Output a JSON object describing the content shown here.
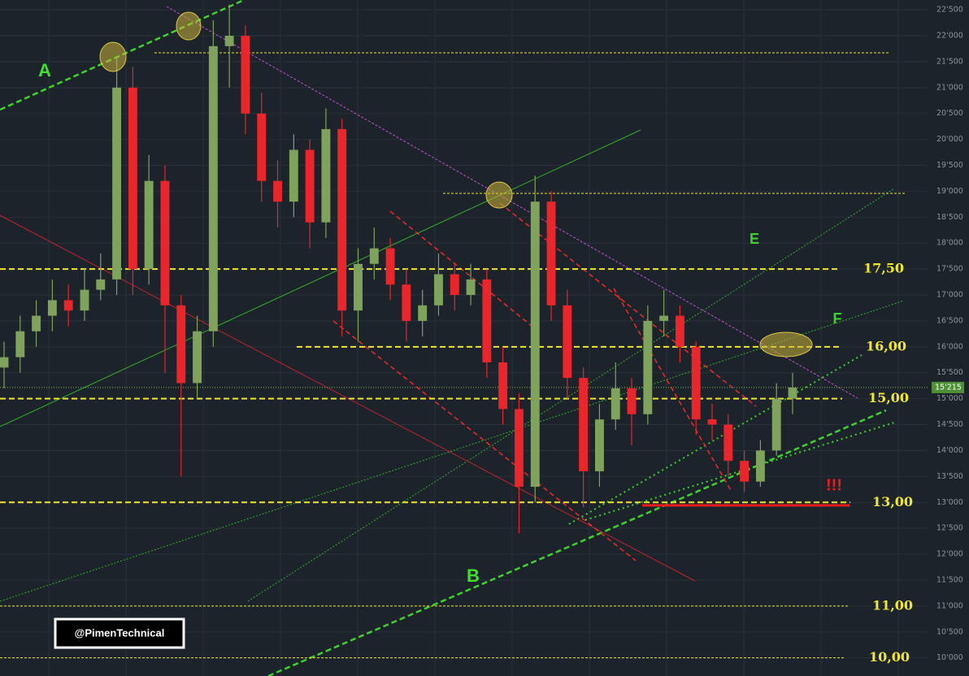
{
  "chart_data": {
    "type": "candlestick",
    "open": [
      15600,
      15800,
      16300,
      16600,
      16900,
      16700,
      17100,
      17300,
      21000,
      17500,
      19200,
      16800,
      15300,
      16300,
      21800,
      22000,
      20500,
      19200,
      18800,
      19800,
      18400,
      20200,
      16700,
      17600,
      17900,
      17200,
      16500,
      16800,
      17400,
      17000,
      17300,
      15700,
      14800,
      13300,
      18800,
      16800,
      15400,
      13600,
      14600,
      15200,
      14700,
      16500,
      16600,
      16000,
      14600,
      14500,
      13800,
      13400,
      14000,
      15000
    ],
    "high": [
      16100,
      16600,
      16900,
      17300,
      17200,
      17500,
      17800,
      21600,
      21400,
      19700,
      19500,
      17000,
      16600,
      22300,
      22600,
      22200,
      20900,
      19600,
      20100,
      20000,
      20600,
      20400,
      17900,
      18300,
      18100,
      17500,
      17100,
      17800,
      17600,
      17600,
      17500,
      16000,
      15100,
      19300,
      19000,
      17100,
      15600,
      14900,
      15700,
      15400,
      16800,
      17100,
      16800,
      16100,
      14900,
      14700,
      14000,
      14200,
      15300,
      15500
    ],
    "low": [
      15200,
      15500,
      16000,
      16300,
      16400,
      16500,
      16900,
      17000,
      17000,
      17200,
      15500,
      13500,
      15000,
      16000,
      21000,
      20100,
      18800,
      18300,
      18500,
      17900,
      18100,
      16200,
      16100,
      17300,
      16900,
      16100,
      16200,
      16600,
      16700,
      16800,
      15400,
      14500,
      12400,
      13000,
      16500,
      15000,
      12900,
      13300,
      14400,
      14100,
      14500,
      16200,
      15700,
      14300,
      14200,
      13500,
      13200,
      13300,
      13900,
      14700
    ],
    "close": [
      15800,
      16300,
      16600,
      16900,
      16700,
      17100,
      17300,
      21000,
      17500,
      19200,
      16800,
      15300,
      16300,
      21800,
      22000,
      20500,
      19200,
      18800,
      19800,
      18400,
      20200,
      16700,
      17600,
      17900,
      17200,
      16500,
      16800,
      17400,
      17000,
      17300,
      15700,
      14800,
      13300,
      18800,
      16800,
      15400,
      13600,
      14600,
      15200,
      14700,
      16500,
      16600,
      16000,
      14600,
      14500,
      13800,
      13400,
      14000,
      15000,
      15215
    ],
    "up_color": "#7fa35c",
    "down_color": "#e8262b",
    "ylim": [
      9650,
      22690
    ],
    "yticks": [
      {
        "value": 10000,
        "label": "10'000"
      },
      {
        "value": 10500,
        "label": "10'500"
      },
      {
        "value": 11000,
        "label": "11'000"
      },
      {
        "value": 11500,
        "label": "11'500"
      },
      {
        "value": 12000,
        "label": "12'000"
      },
      {
        "value": 12500,
        "label": "12'500"
      },
      {
        "value": 13000,
        "label": "13'000"
      },
      {
        "value": 13500,
        "label": "13'500"
      },
      {
        "value": 14000,
        "label": "14'000"
      },
      {
        "value": 14500,
        "label": "14'500"
      },
      {
        "value": 15000,
        "label": "15'000"
      },
      {
        "value": 15500,
        "label": "15'500"
      },
      {
        "value": 16000,
        "label": "16'000"
      },
      {
        "value": 16500,
        "label": "16'500"
      },
      {
        "value": 17000,
        "label": "17'000"
      },
      {
        "value": 17500,
        "label": "17'500"
      },
      {
        "value": 18000,
        "label": "18'000"
      },
      {
        "value": 18500,
        "label": "18'500"
      },
      {
        "value": 19000,
        "label": "19'000"
      },
      {
        "value": 19500,
        "label": "19'500"
      },
      {
        "value": 20000,
        "label": "20'000"
      },
      {
        "value": 20500,
        "label": "20'500"
      },
      {
        "value": 21000,
        "label": "21'000"
      },
      {
        "value": 21500,
        "label": "21'500"
      },
      {
        "value": 22000,
        "label": "22'000"
      },
      {
        "value": 22500,
        "label": "22'500"
      }
    ],
    "grid": true,
    "levels": [
      {
        "value": 17500,
        "label": "17,50",
        "style": "dashed"
      },
      {
        "value": 16000,
        "label": "16,00",
        "style": "dashed"
      },
      {
        "value": 15000,
        "label": "15,00",
        "style": "dashed"
      },
      {
        "value": 13000,
        "label": "13,00",
        "style": "dashed"
      },
      {
        "value": 11000,
        "label": "11,00",
        "style": "dotted"
      },
      {
        "value": 10000,
        "label": "10,00",
        "style": "dotted"
      }
    ],
    "level_color": "#f2e72c",
    "last_price": {
      "value": 15215,
      "label": "15'215"
    },
    "annotations": [
      "A",
      "B",
      "E",
      "F",
      "!!!"
    ],
    "watermark": "@PimenTechnical"
  }
}
